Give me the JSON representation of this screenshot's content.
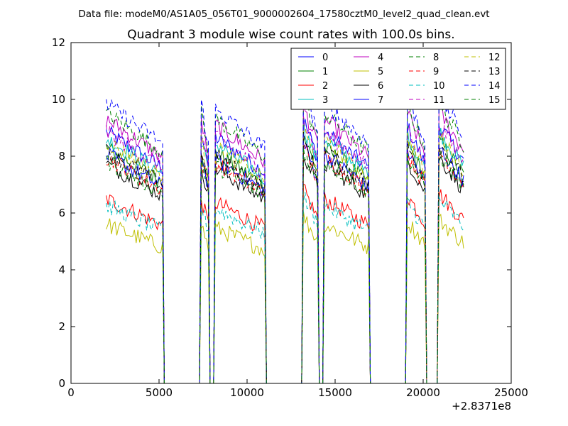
{
  "chart_data": {
    "type": "line",
    "suptitle": "Data file: modeM0/AS1A05_056T01_9000002604_17580cztM0_level2_quad_clean.evt",
    "title": "Quadrant 3 module wise count rates with 100.0s bins.",
    "xlabel": "",
    "ylabel": "",
    "x_offset_label": "+2.8371e8",
    "xlim": [
      0,
      25000
    ],
    "ylim": [
      0,
      12
    ],
    "xticks": [
      0,
      5000,
      10000,
      15000,
      20000,
      25000
    ],
    "yticks": [
      0,
      2,
      4,
      6,
      8,
      10,
      12
    ],
    "grid": false,
    "legend_position": "top-right",
    "legend_columns": 4,
    "x_range": [
      2000,
      22300
    ],
    "bin_size": 100,
    "segments": [
      {
        "name": "seg1",
        "x_range": [
          2000,
          5200
        ]
      },
      {
        "name": "seg2",
        "x_range": [
          7400,
          7800
        ]
      },
      {
        "name": "seg3",
        "x_range": [
          8200,
          11000
        ]
      },
      {
        "name": "seg4",
        "x_range": [
          13200,
          14000
        ]
      },
      {
        "name": "seg5",
        "x_range": [
          14400,
          16900
        ]
      },
      {
        "name": "seg6",
        "x_range": [
          19100,
          20100
        ]
      },
      {
        "name": "seg7",
        "x_range": [
          20900,
          22300
        ]
      }
    ],
    "series": [
      {
        "name": "0",
        "color": "#0000ff",
        "dash": "solid",
        "level": 7.9
      },
      {
        "name": "1",
        "color": "#008000",
        "dash": "solid",
        "level": 7.4
      },
      {
        "name": "2",
        "color": "#ff0000",
        "dash": "solid",
        "level": 5.8
      },
      {
        "name": "3",
        "color": "#00bfbf",
        "dash": "solid",
        "level": 7.7
      },
      {
        "name": "4",
        "color": "#bf00bf",
        "dash": "solid",
        "level": 8.3
      },
      {
        "name": "5",
        "color": "#bfbf00",
        "dash": "solid",
        "level": 5.0
      },
      {
        "name": "6",
        "color": "#000000",
        "dash": "solid",
        "level": 6.9
      },
      {
        "name": "7",
        "color": "#0000ff",
        "dash": "solid",
        "level": 7.2
      },
      {
        "name": "8",
        "color": "#008000",
        "dash": "dashed",
        "level": 8.5
      },
      {
        "name": "9",
        "color": "#ff0000",
        "dash": "dashed",
        "level": 7.1
      },
      {
        "name": "10",
        "color": "#00bfbf",
        "dash": "dashed",
        "level": 5.6
      },
      {
        "name": "11",
        "color": "#bf00bf",
        "dash": "dashed",
        "level": 7.9
      },
      {
        "name": "12",
        "color": "#bfbf00",
        "dash": "dashed",
        "level": 7.6
      },
      {
        "name": "13",
        "color": "#000000",
        "dash": "dashed",
        "level": 7.3
      },
      {
        "name": "14",
        "color": "#0000ff",
        "dash": "dashed",
        "level": 8.8
      },
      {
        "name": "15",
        "color": "#008000",
        "dash": "dashed",
        "level": 7.0
      }
    ]
  }
}
